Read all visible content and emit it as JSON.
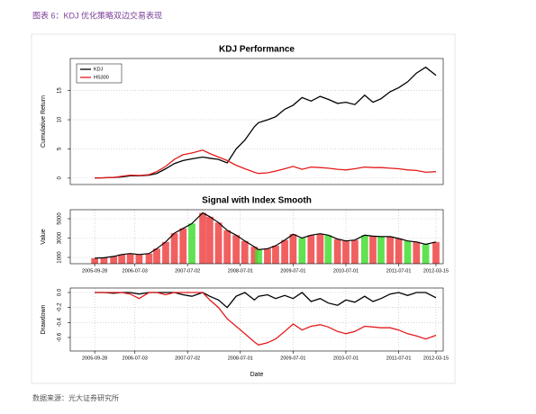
{
  "caption": "图表 6：KDJ 优化策略双边交易表现",
  "source": "数据来源：光大证券研究所",
  "chart_data": [
    {
      "type": "line",
      "title": "KDJ Performance",
      "ylabel": "Cumulative Return",
      "legend": "top-left",
      "grid": true,
      "x": [
        "2005-09-28",
        "2005-12-01",
        "2006-02-06",
        "2006-04-03",
        "2006-06-01",
        "2006-08-01",
        "2006-10-09",
        "2006-12-01",
        "2007-02-01",
        "2007-04-02",
        "2007-06-01",
        "2007-08-01",
        "2007-10-15",
        "2007-12-03",
        "2008-02-01",
        "2008-04-01",
        "2008-06-02",
        "2008-08-01",
        "2008-10-06",
        "2008-11-04",
        "2009-01-05",
        "2009-03-02",
        "2009-05-04",
        "2009-07-01",
        "2009-09-01",
        "2009-11-02",
        "2010-01-04",
        "2010-03-01",
        "2010-05-04",
        "2010-07-01",
        "2010-09-01",
        "2010-11-08",
        "2011-01-04",
        "2011-03-01",
        "2011-05-03",
        "2011-07-01",
        "2011-09-01",
        "2011-11-01",
        "2012-01-04",
        "2012-03-15"
      ],
      "xlim": [
        "2005-04-12",
        "2012-05-04"
      ],
      "ylim": [
        -1.1,
        20.5
      ],
      "yticks": [
        0,
        5,
        10,
        15
      ],
      "series": [
        {
          "name": "KDJ",
          "color": "#000000",
          "values": [
            0,
            0.05,
            0.1,
            0.2,
            0.4,
            0.4,
            0.5,
            0.8,
            1.6,
            2.5,
            3.0,
            3.3,
            3.6,
            3.4,
            3.2,
            2.6,
            5.0,
            6.5,
            8.8,
            9.5,
            10.0,
            10.5,
            11.8,
            12.5,
            13.8,
            13.2,
            14.0,
            13.5,
            12.8,
            13.0,
            12.6,
            14.2,
            13.0,
            13.6,
            14.8,
            15.5,
            16.5,
            18.0,
            19.0,
            17.6
          ]
        },
        {
          "name": "HS300",
          "color": "#e41a1c",
          "values": [
            0,
            0.05,
            0.1,
            0.3,
            0.5,
            0.45,
            0.6,
            1.1,
            2.0,
            3.2,
            4.0,
            4.3,
            4.8,
            4.2,
            3.6,
            3.0,
            2.2,
            1.6,
            1.0,
            0.8,
            0.9,
            1.2,
            1.6,
            2.0,
            1.5,
            1.9,
            1.8,
            1.7,
            1.5,
            1.4,
            1.6,
            1.9,
            1.8,
            1.8,
            1.7,
            1.6,
            1.4,
            1.3,
            1.0,
            1.1
          ]
        }
      ]
    },
    {
      "type": "bar",
      "title": "Signal with Index Smooth",
      "ylabel": "Value",
      "grid": true,
      "line_color": "#000000",
      "x": [
        "2005-09-28",
        "2005-12-01",
        "2006-02-06",
        "2006-04-03",
        "2006-06-01",
        "2006-08-01",
        "2006-10-09",
        "2006-12-01",
        "2007-02-01",
        "2007-04-02",
        "2007-06-01",
        "2007-08-01",
        "2007-10-15",
        "2007-12-03",
        "2008-02-01",
        "2008-04-01",
        "2008-06-02",
        "2008-08-01",
        "2008-10-06",
        "2008-11-04",
        "2009-01-05",
        "2009-03-02",
        "2009-05-04",
        "2009-07-01",
        "2009-09-01",
        "2009-11-02",
        "2010-01-04",
        "2010-03-01",
        "2010-05-04",
        "2010-07-01",
        "2010-09-01",
        "2010-11-08",
        "2011-01-04",
        "2011-03-01",
        "2011-05-03",
        "2011-07-01",
        "2011-09-01",
        "2011-11-01",
        "2012-01-04",
        "2012-03-15"
      ],
      "xlim": [
        "2005-04-12",
        "2012-05-04"
      ],
      "ylim": [
        350,
        5930
      ],
      "yticks": [
        1000,
        3000,
        5000
      ],
      "xticks": [
        "2005-09-28",
        "2006-07-03",
        "2007-07-02",
        "2008-07-01",
        "2009-07-01",
        "2010-07-01",
        "2011-07-01",
        "2012-03-15"
      ],
      "values": [
        920,
        960,
        1100,
        1300,
        1400,
        1300,
        1400,
        1900,
        2600,
        3500,
        4000,
        4500,
        5600,
        5200,
        4600,
        3800,
        3300,
        2700,
        2100,
        1800,
        1900,
        2200,
        2800,
        3400,
        3000,
        3300,
        3450,
        3300,
        2900,
        2700,
        2800,
        3300,
        3200,
        3150,
        3150,
        2950,
        2700,
        2600,
        2350,
        2600
      ],
      "bar_colors": [
        "#ee4444",
        "#ee4444",
        "#ee4444",
        "#ee4444",
        "#ee4444",
        "#ee4444",
        "#ee4444",
        "#ee4444",
        "#ee4444",
        "#ee4444",
        "#ee4444",
        "#44dd33",
        "#ee4444",
        "#ee4444",
        "#ee4444",
        "#ee4444",
        "#ee4444",
        "#ee4444",
        "#ee4444",
        "#44dd33",
        "#ee4444",
        "#ee4444",
        "#ee4444",
        "#ee4444",
        "#44dd33",
        "#ee4444",
        "#ee4444",
        "#44dd33",
        "#ee4444",
        "#ee4444",
        "#ee4444",
        "#44dd33",
        "#ee4444",
        "#44dd33",
        "#ee4444",
        "#ee4444",
        "#44dd33",
        "#ee4444",
        "#44dd33",
        "#ee4444"
      ]
    },
    {
      "type": "line",
      "ylabel": "Drawdown",
      "xlabel": "Date",
      "grid": true,
      "x": [
        "2005-09-28",
        "2005-12-01",
        "2006-02-06",
        "2006-04-03",
        "2006-06-01",
        "2006-08-01",
        "2006-10-09",
        "2006-12-01",
        "2007-02-01",
        "2007-04-02",
        "2007-06-01",
        "2007-08-01",
        "2007-10-15",
        "2007-12-03",
        "2008-02-01",
        "2008-04-01",
        "2008-06-02",
        "2008-08-01",
        "2008-10-06",
        "2008-11-04",
        "2009-01-05",
        "2009-03-02",
        "2009-05-04",
        "2009-07-01",
        "2009-09-01",
        "2009-11-02",
        "2010-01-04",
        "2010-03-01",
        "2010-05-04",
        "2010-07-01",
        "2010-09-01",
        "2010-11-08",
        "2011-01-04",
        "2011-03-01",
        "2011-05-03",
        "2011-07-01",
        "2011-09-01",
        "2011-11-01",
        "2012-01-04",
        "2012-03-15"
      ],
      "xlim": [
        "2005-04-12",
        "2012-05-04"
      ],
      "ylim": [
        -0.78,
        0.06
      ],
      "yticks": [
        {
          "value": 0,
          "label": "0.0"
        },
        -0.2,
        -0.4,
        -0.6
      ],
      "xticks": [
        "2005-09-28",
        "2006-07-03",
        "2007-07-02",
        "2008-07-01",
        "2009-07-01",
        "2010-07-01",
        "2011-07-01",
        "2012-03-15"
      ],
      "series": [
        {
          "color": "#000000",
          "values": [
            0,
            0,
            -0.01,
            0,
            0,
            -0.02,
            0,
            0,
            0,
            0,
            -0.03,
            -0.05,
            0,
            -0.05,
            -0.1,
            -0.2,
            -0.05,
            0,
            -0.1,
            -0.05,
            -0.03,
            -0.08,
            -0.04,
            -0.08,
            0,
            -0.12,
            -0.08,
            -0.14,
            -0.17,
            -0.1,
            -0.13,
            -0.05,
            -0.12,
            -0.08,
            -0.02,
            0,
            -0.04,
            0,
            0,
            -0.07
          ]
        },
        {
          "color": "#e41a1c",
          "values": [
            0,
            0,
            0,
            0,
            -0.02,
            -0.08,
            0,
            0,
            -0.03,
            0,
            0,
            0,
            0,
            -0.1,
            -0.2,
            -0.35,
            -0.45,
            -0.55,
            -0.66,
            -0.7,
            -0.67,
            -0.62,
            -0.52,
            -0.42,
            -0.5,
            -0.45,
            -0.43,
            -0.46,
            -0.52,
            -0.55,
            -0.52,
            -0.45,
            -0.46,
            -0.47,
            -0.47,
            -0.5,
            -0.55,
            -0.58,
            -0.62,
            -0.57
          ]
        }
      ]
    }
  ]
}
